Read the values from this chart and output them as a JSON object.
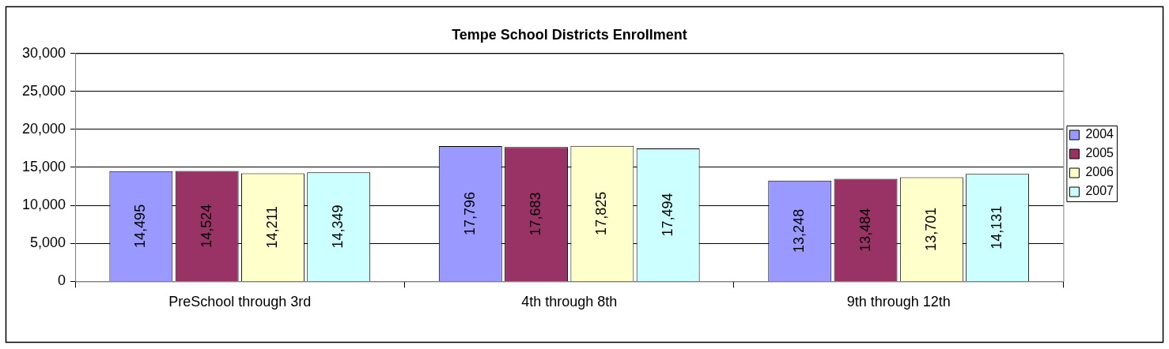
{
  "chart_data": {
    "type": "bar",
    "title": "Tempe School Districts Enrollment",
    "categories": [
      "PreSchool through 3rd",
      "4th through 8th",
      "9th through 12th"
    ],
    "series": [
      {
        "name": "2004",
        "color": "#9999ff",
        "values": [
          14495,
          17796,
          13248
        ],
        "value_labels": [
          "14,495",
          "17,796",
          "13,248"
        ]
      },
      {
        "name": "2005",
        "color": "#993366",
        "values": [
          14524,
          17683,
          13484
        ],
        "value_labels": [
          "14,524",
          "17,683",
          "13,484"
        ]
      },
      {
        "name": "2006",
        "color": "#ffffcc",
        "values": [
          14211,
          17825,
          13701
        ],
        "value_labels": [
          "14,211",
          "17,825",
          "13,701"
        ]
      },
      {
        "name": "2007",
        "color": "#ccffff",
        "values": [
          14349,
          17494,
          14131
        ],
        "value_labels": [
          "14,349",
          "17,494",
          "14,131"
        ]
      }
    ],
    "ylim": [
      0,
      30000
    ],
    "yticks": [
      0,
      {
        "value": 5000,
        "label": "5,000"
      },
      {
        "value": 10000,
        "label": "10,000"
      },
      {
        "value": 15000,
        "label": "15,000"
      },
      {
        "value": 20000,
        "label": "20,000"
      },
      {
        "value": 25000,
        "label": "25,000"
      },
      {
        "value": 30000,
        "label": "30,000"
      }
    ],
    "grid": "y",
    "legend": "right"
  }
}
